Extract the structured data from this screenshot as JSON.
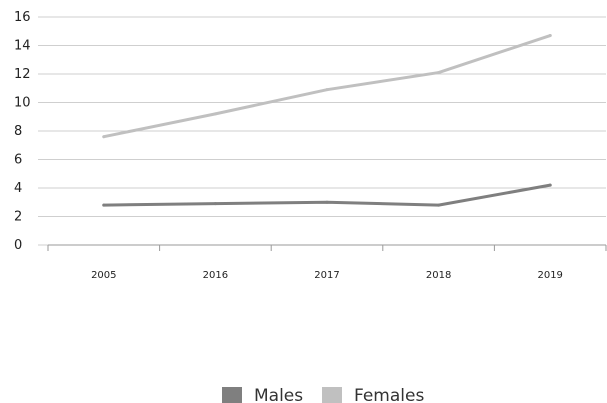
{
  "chart_data": {
    "type": "line",
    "title": "",
    "xlabel": "",
    "ylabel": "",
    "categories": [
      "2005",
      "2016",
      "2017",
      "2018",
      "2019"
    ],
    "ylim": [
      0,
      16
    ],
    "yticks": [
      0,
      2,
      4,
      6,
      8,
      10,
      12,
      14,
      16
    ],
    "grid": "horizontal",
    "legend_position": "bottom",
    "series": [
      {
        "name": "Males",
        "color": "#7f7f7f",
        "values": [
          2.8,
          2.9,
          3.0,
          2.8,
          4.2
        ]
      },
      {
        "name": "Females",
        "color": "#c0c0c0",
        "values": [
          7.6,
          9.2,
          10.9,
          12.1,
          14.7
        ]
      }
    ]
  }
}
